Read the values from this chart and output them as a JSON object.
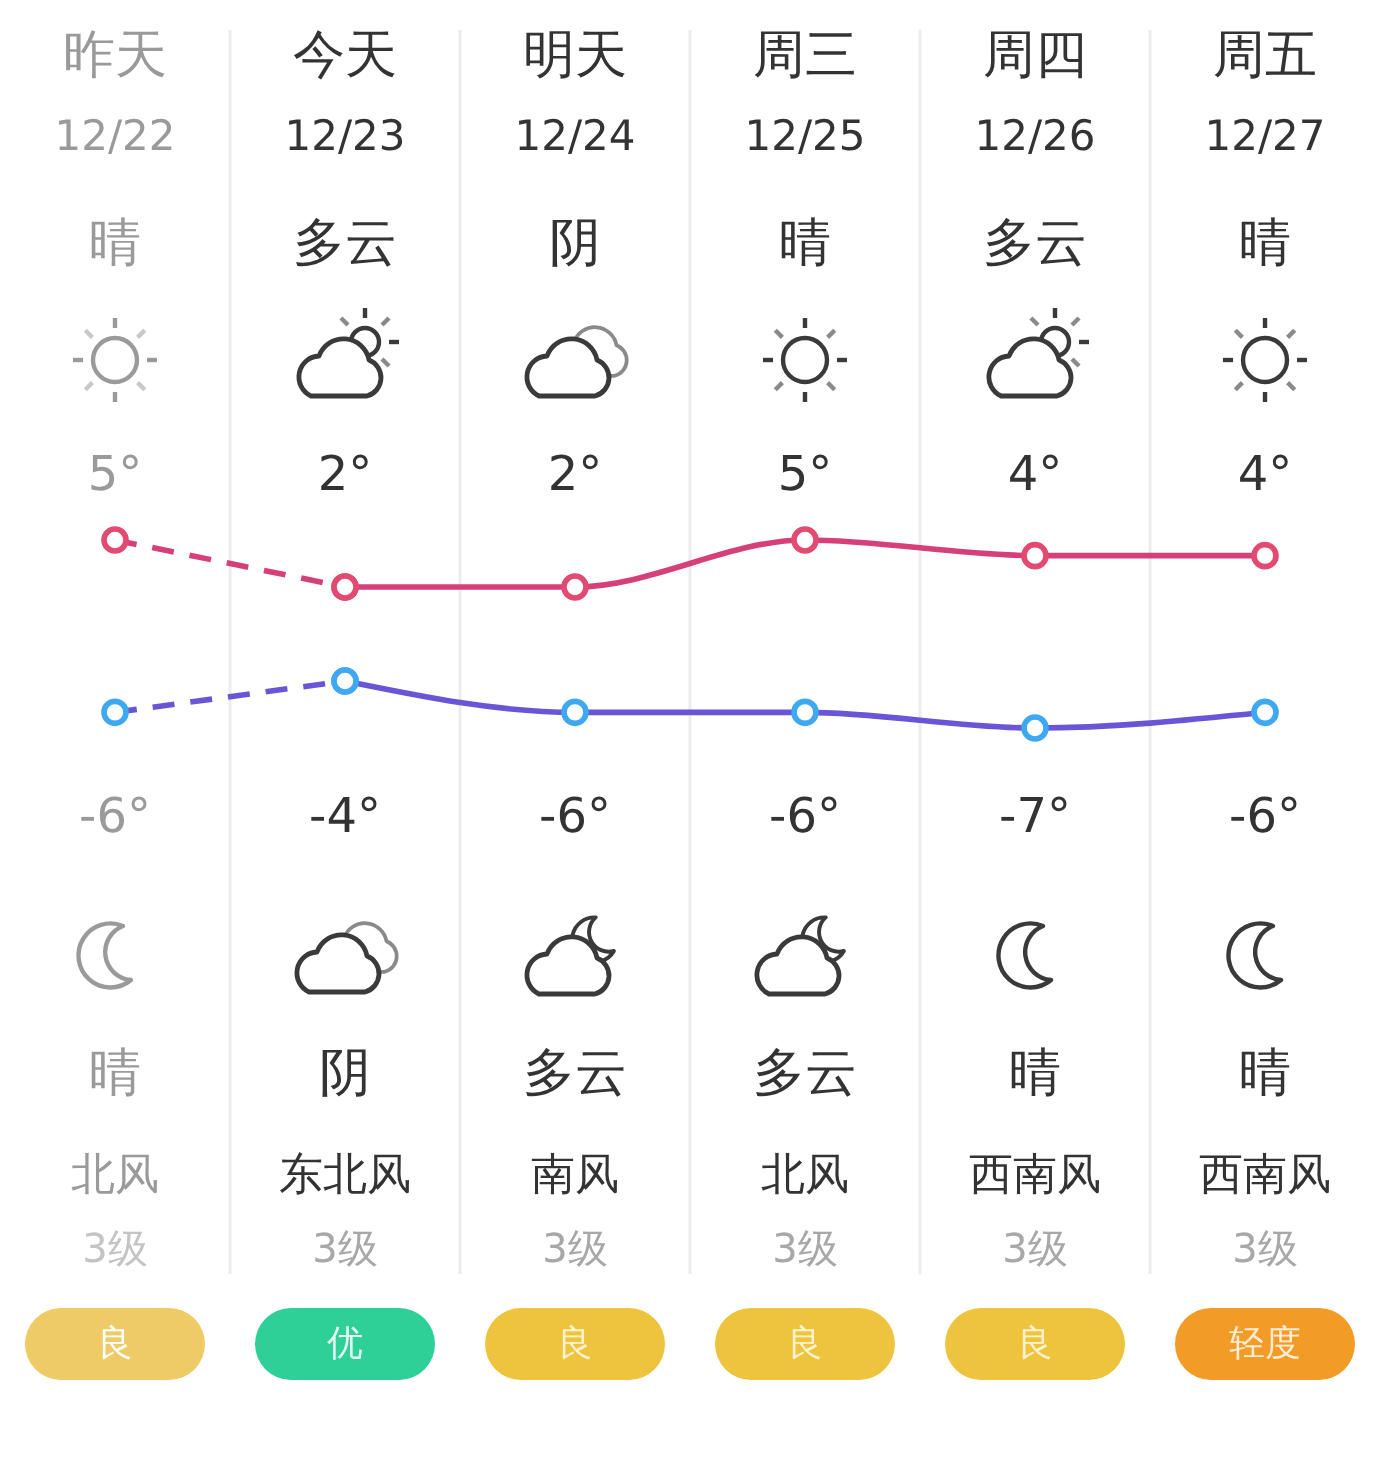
{
  "chart_data": {
    "type": "line",
    "categories": [
      "昨天",
      "今天",
      "明天",
      "周三",
      "周四",
      "周五"
    ],
    "grid": "x",
    "series": [
      {
        "color": "#d6407a",
        "line_style": "dashed",
        "marker": "circle",
        "colors": [
          "#e24a72",
          "#e24a72",
          null,
          null,
          null,
          null
        ],
        "values": [
          5,
          2,
          null,
          null,
          null,
          null
        ],
        "value_labels": [
          "5°",
          null,
          null,
          null,
          null,
          null
        ]
      },
      {
        "color": "#d6407a",
        "line_style": "solid",
        "marker": "circle",
        "colors": [
          null,
          "#e24a72",
          "#e24a72",
          "#e24a72",
          "#e24a72",
          "#e24a72"
        ],
        "values": [
          null,
          2,
          2,
          5,
          4,
          4
        ],
        "value_labels": [
          null,
          "2°",
          "2°",
          "5°",
          "4°",
          "4°"
        ]
      },
      {
        "color": "#6a55d6",
        "line_style": "dashed",
        "marker": "circle",
        "colors": [
          "#3ea8f0",
          "#3ea8f0",
          null,
          null,
          null,
          null
        ],
        "values": [
          -6,
          -4,
          null,
          null,
          null,
          null
        ],
        "value_labels": [
          "-6°",
          null,
          null,
          null,
          null,
          null
        ]
      },
      {
        "color": "#6a55d6",
        "line_style": "solid",
        "marker": "circle",
        "colors": [
          null,
          "#3ea8f0",
          "#3ea8f0",
          "#3ea8f0",
          "#3ea8f0",
          "#3ea8f0"
        ],
        "values": [
          null,
          -4,
          -6,
          -6,
          -7,
          -6
        ],
        "value_labels": [
          null,
          "-4°",
          "-6°",
          "-6°",
          "-7°",
          "-6°"
        ]
      }
    ],
    "annotations": [
      "12/22",
      "12/23",
      "12/24",
      "12/25",
      "12/26",
      "12/27",
      "晴",
      "多云",
      "阴",
      "晴",
      "多云",
      "晴",
      "晴",
      "阴",
      "多云",
      "多云",
      "晴",
      "晴",
      "北风",
      "东北风",
      "南风",
      "北风",
      "西南风",
      "西南风",
      "3级",
      "3级",
      "3级",
      "3级",
      "3级",
      "3级",
      "良",
      "优",
      "良",
      "良",
      "良",
      "轻度"
    ]
  }
}
